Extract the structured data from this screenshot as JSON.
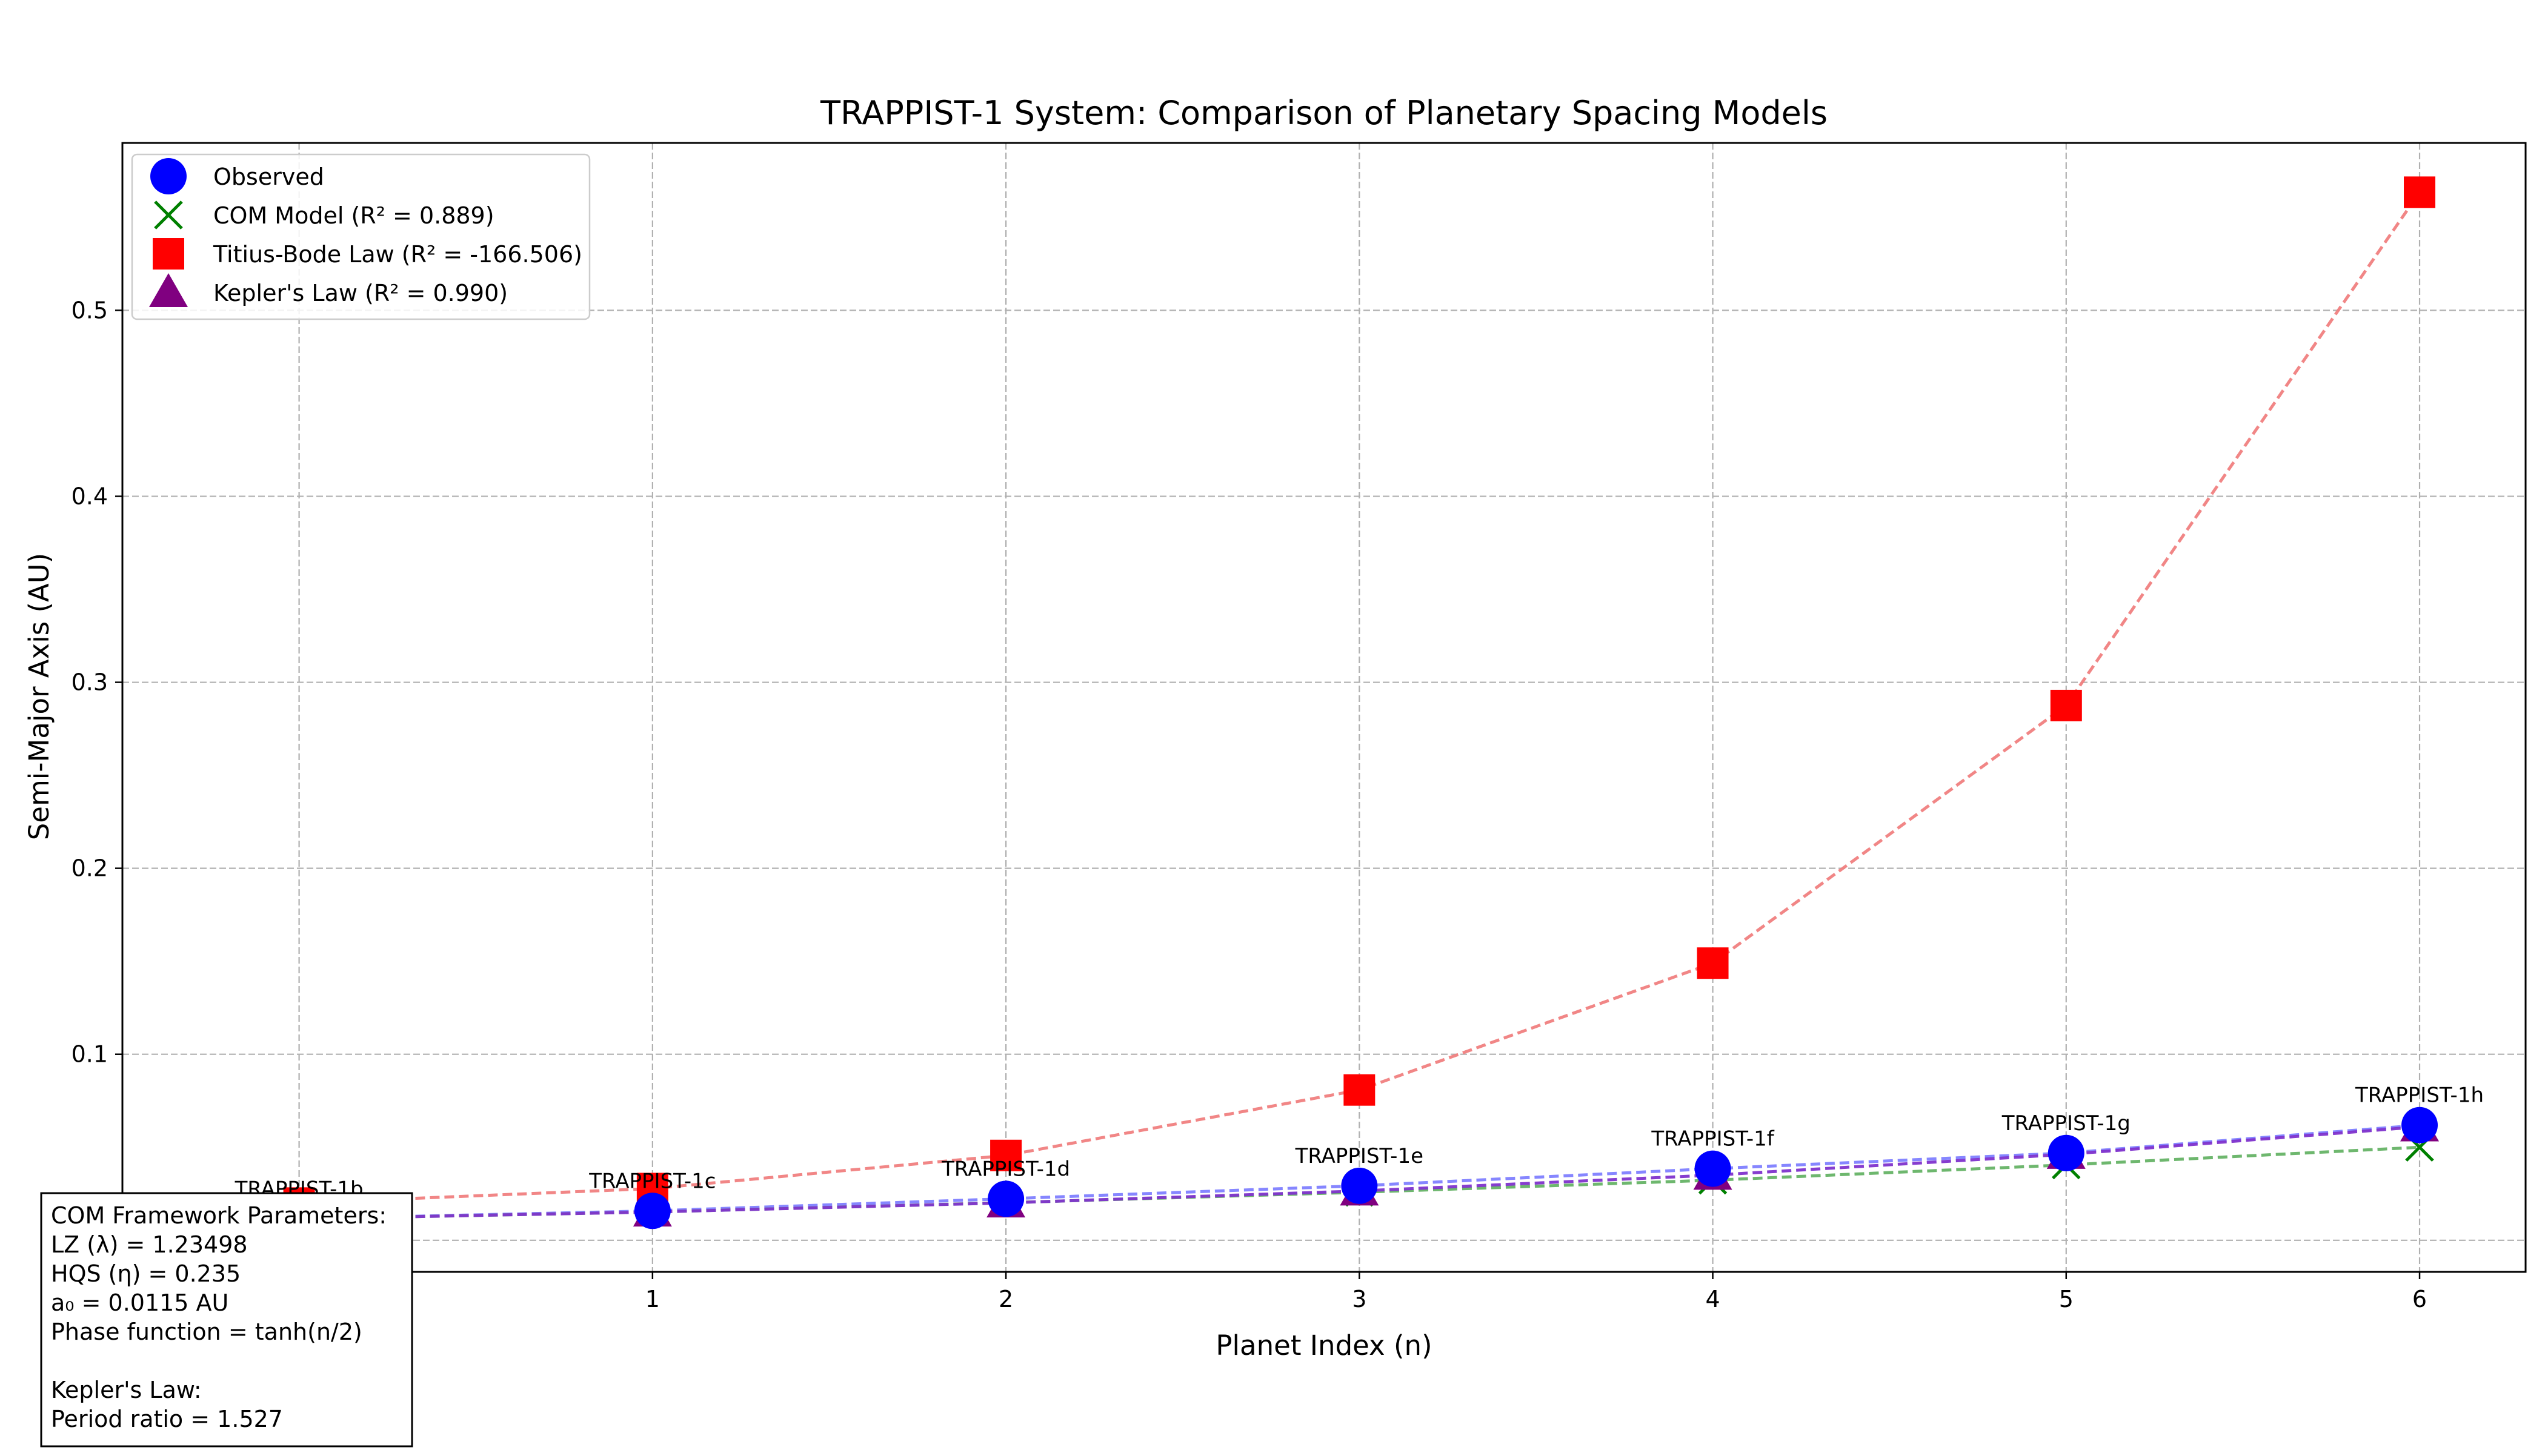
{
  "chart_data": {
    "type": "line",
    "title": "TRAPPIST-1 System: Comparison of Planetary Spacing Models",
    "xlabel": "Planet Index (n)",
    "ylabel": "Semi-Major Axis (AU)",
    "xlim": [
      -0.5,
      6.3
    ],
    "ylim": [
      -0.017,
      0.59
    ],
    "x_ticks": [
      0,
      1,
      2,
      3,
      4,
      5,
      6
    ],
    "y_ticks": [
      0.1,
      0.2,
      0.3,
      0.4,
      0.5
    ],
    "y_tick_labels": [
      "0.1",
      "0.2",
      "0.3",
      "0.4",
      "0.5"
    ],
    "grid": true,
    "legend_position": "top-left",
    "x": [
      0,
      1,
      2,
      3,
      4,
      5,
      6
    ],
    "planet_labels": [
      "TRAPPIST-1b",
      "TRAPPIST-1c",
      "TRAPPIST-1d",
      "TRAPPIST-1e",
      "TRAPPIST-1f",
      "TRAPPIST-1g",
      "TRAPPIST-1h"
    ],
    "series": [
      {
        "name": "Observed",
        "marker": "circle",
        "color": "#0000ff",
        "line_color": "#8080ff",
        "values": [
          0.0115,
          0.0158,
          0.0223,
          0.0293,
          0.0385,
          0.0469,
          0.0619
        ]
      },
      {
        "name": "COM Model (R² = 0.889)",
        "marker": "x",
        "color": "#008000",
        "line_color": "#66b366",
        "values": [
          0.0115,
          0.0152,
          0.0202,
          0.0258,
          0.0323,
          0.0405,
          0.05
        ]
      },
      {
        "name": "Titius-Bode Law (R² = -166.506)",
        "marker": "square",
        "color": "#ff0000",
        "line_color": "#f08080",
        "values": [
          0.02,
          0.0278,
          0.0456,
          0.0808,
          0.149,
          0.2875,
          0.5635
        ]
      },
      {
        "name": "Kepler's Law (R² = 0.990)",
        "marker": "triangle",
        "color": "#800080",
        "line_color": "#8033cc",
        "values": [
          0.0115,
          0.0152,
          0.0201,
          0.0265,
          0.035,
          0.0462,
          0.061
        ]
      }
    ]
  },
  "parameters_box": {
    "lines": [
      "COM Framework Parameters:",
      "LZ (λ) = 1.23498",
      "HQS (η) = 0.235",
      "a₀ = 0.0115 AU",
      "Phase function = tanh(n/2)",
      "",
      "Kepler's Law:",
      "Period ratio = 1.527"
    ]
  }
}
